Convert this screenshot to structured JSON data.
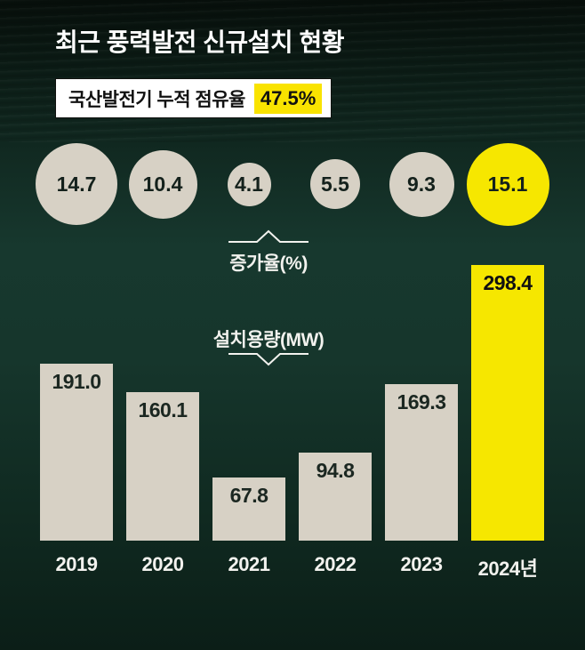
{
  "title": "최근 풍력발전 신규설치 현황",
  "badge": {
    "label": "국산발전기 누적 점유율",
    "value": "47.5%"
  },
  "labels": {
    "growth": "증가율(%)",
    "capacity": "설치용량(MW)"
  },
  "chart_data": {
    "type": "bar",
    "title": "최근 풍력발전 신규설치 현황",
    "subtitle": "국산발전기 누적 점유율 47.5%",
    "categories": [
      "2019",
      "2020",
      "2021",
      "2022",
      "2023",
      "2024년"
    ],
    "series": [
      {
        "name": "설치용량(MW)",
        "values": [
          191.0,
          160.1,
          67.8,
          94.8,
          169.3,
          298.4
        ]
      },
      {
        "name": "증가율(%)",
        "values": [
          14.7,
          10.4,
          4.1,
          5.5,
          9.3,
          15.1
        ]
      }
    ],
    "highlight_index": 5,
    "ylim": [
      0,
      320
    ],
    "grid": false,
    "legend_position": "none",
    "colors": {
      "bar": "#d7d1c5",
      "circle": "#d7d1c5",
      "highlight": "#f6e700",
      "background": "#16362c",
      "text_light": "#f2f2ee",
      "text_dark": "#1b2721"
    }
  }
}
